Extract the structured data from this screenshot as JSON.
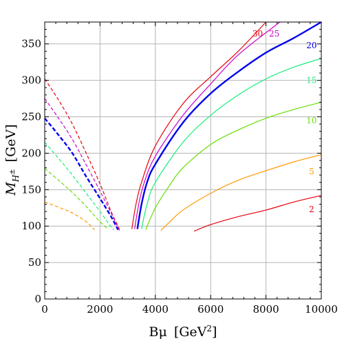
{
  "chart_data": {
    "type": "line",
    "title": "",
    "xlabel": {
      "main": "Bμ",
      "unit_open": "[GeV",
      "unit_sup": "2",
      "unit_close": "]"
    },
    "ylabel": {
      "main": "M",
      "sub": "H",
      "subsup": "±",
      "unit": "[GeV]"
    },
    "xlim": [
      0,
      10000
    ],
    "ylim": [
      0,
      380
    ],
    "xticks": [
      0,
      2000,
      4000,
      6000,
      8000,
      10000
    ],
    "yticks": [
      0,
      50,
      100,
      150,
      200,
      250,
      300,
      350
    ],
    "xtick_labels": [
      "0",
      "2000",
      "4000",
      "6000",
      "8000",
      "10000"
    ],
    "ytick_labels": [
      "0",
      "50",
      "100",
      "150",
      "200",
      "250",
      "300",
      "350"
    ],
    "grid": true,
    "series": [
      {
        "name": "30",
        "color": "#e8000b",
        "style": "solid",
        "width": 1.2,
        "label_pos": [
          7700,
          364
        ],
        "points": [
          [
            3150,
            96
          ],
          [
            3300,
            130
          ],
          [
            3500,
            160
          ],
          [
            4000,
            210
          ],
          [
            5000,
            268
          ],
          [
            6000,
            305
          ],
          [
            7000,
            340
          ],
          [
            8000,
            380
          ]
        ]
      },
      {
        "name": "25",
        "color": "#cc00cc",
        "style": "solid",
        "width": 1.2,
        "label_pos": [
          8300,
          364
        ],
        "points": [
          [
            3250,
            96
          ],
          [
            3400,
            130
          ],
          [
            3600,
            160
          ],
          [
            4000,
            196
          ],
          [
            5000,
            252
          ],
          [
            6000,
            295
          ],
          [
            7000,
            335
          ],
          [
            8500,
            380
          ]
        ]
      },
      {
        "name": "20",
        "color": "#0000ee",
        "style": "solid",
        "width": 2.4,
        "label_pos": [
          9650,
          348
        ],
        "points": [
          [
            3350,
            96
          ],
          [
            3500,
            130
          ],
          [
            3700,
            160
          ],
          [
            4000,
            185
          ],
          [
            5000,
            242
          ],
          [
            6000,
            282
          ],
          [
            7000,
            312
          ],
          [
            8000,
            338
          ],
          [
            9000,
            358
          ],
          [
            10000,
            380
          ]
        ]
      },
      {
        "name": "15",
        "color": "#18ee78",
        "style": "solid",
        "width": 1.2,
        "label_pos": [
          9650,
          300
        ],
        "points": [
          [
            3500,
            96
          ],
          [
            3700,
            130
          ],
          [
            4000,
            160
          ],
          [
            5000,
            215
          ],
          [
            6000,
            252
          ],
          [
            7000,
            280
          ],
          [
            8000,
            302
          ],
          [
            9000,
            318
          ],
          [
            10000,
            330
          ]
        ]
      },
      {
        "name": "10",
        "color": "#66dd00",
        "style": "solid",
        "width": 1.2,
        "label_pos": [
          9650,
          245
        ],
        "points": [
          [
            3650,
            95
          ],
          [
            4000,
            125
          ],
          [
            4500,
            155
          ],
          [
            5000,
            180
          ],
          [
            6000,
            212
          ],
          [
            7000,
            232
          ],
          [
            8000,
            248
          ],
          [
            9000,
            260
          ],
          [
            10000,
            270
          ]
        ]
      },
      {
        "name": "5",
        "color": "#ff9900",
        "style": "solid",
        "width": 1.2,
        "label_pos": [
          9650,
          175
        ],
        "points": [
          [
            4200,
            94
          ],
          [
            4500,
            105
          ],
          [
            5000,
            122
          ],
          [
            6000,
            145
          ],
          [
            7000,
            163
          ],
          [
            8000,
            176
          ],
          [
            9000,
            188
          ],
          [
            10000,
            198
          ]
        ]
      },
      {
        "name": "2",
        "color": "#e8000b",
        "style": "solid",
        "width": 1.2,
        "label_pos": [
          9650,
          123
        ],
        "points": [
          [
            5400,
            93
          ],
          [
            6000,
            102
          ],
          [
            7000,
            113
          ],
          [
            8000,
            122
          ],
          [
            9000,
            133
          ],
          [
            10000,
            142
          ]
        ]
      },
      {
        "name": "30-dashed",
        "color": "#e8000b",
        "style": "dashed",
        "width": 1.2,
        "points": [
          [
            0,
            302
          ],
          [
            500,
            273
          ],
          [
            1000,
            240
          ],
          [
            1500,
            200
          ],
          [
            2000,
            158
          ],
          [
            2400,
            120
          ],
          [
            2700,
            96
          ]
        ]
      },
      {
        "name": "25-dashed",
        "color": "#cc00cc",
        "style": "dashed",
        "width": 1.2,
        "points": [
          [
            0,
            275
          ],
          [
            500,
            248
          ],
          [
            1000,
            219
          ],
          [
            1500,
            184
          ],
          [
            2000,
            148
          ],
          [
            2400,
            118
          ],
          [
            2700,
            94
          ]
        ]
      },
      {
        "name": "20-dashed",
        "color": "#0000ee",
        "style": "dashed",
        "width": 2.4,
        "points": [
          [
            0,
            248
          ],
          [
            500,
            225
          ],
          [
            1000,
            200
          ],
          [
            1500,
            168
          ],
          [
            2000,
            138
          ],
          [
            2400,
            113
          ],
          [
            2650,
            95
          ]
        ]
      },
      {
        "name": "15-dashed",
        "color": "#18ee78",
        "style": "dashed",
        "width": 1.2,
        "points": [
          [
            0,
            215
          ],
          [
            500,
            193
          ],
          [
            1000,
            170
          ],
          [
            1500,
            145
          ],
          [
            2000,
            120
          ],
          [
            2300,
            104
          ],
          [
            2500,
            95
          ]
        ]
      },
      {
        "name": "10-dashed",
        "color": "#66dd00",
        "style": "dashed",
        "width": 1.2,
        "points": [
          [
            0,
            179
          ],
          [
            500,
            163
          ],
          [
            1000,
            146
          ],
          [
            1500,
            127
          ],
          [
            1900,
            110
          ],
          [
            2300,
            95
          ]
        ]
      },
      {
        "name": "5-dashed",
        "color": "#ff9900",
        "style": "dashed",
        "width": 1.2,
        "points": [
          [
            0,
            133
          ],
          [
            500,
            126
          ],
          [
            1000,
            118
          ],
          [
            1500,
            106
          ],
          [
            1800,
            95
          ]
        ]
      }
    ]
  }
}
